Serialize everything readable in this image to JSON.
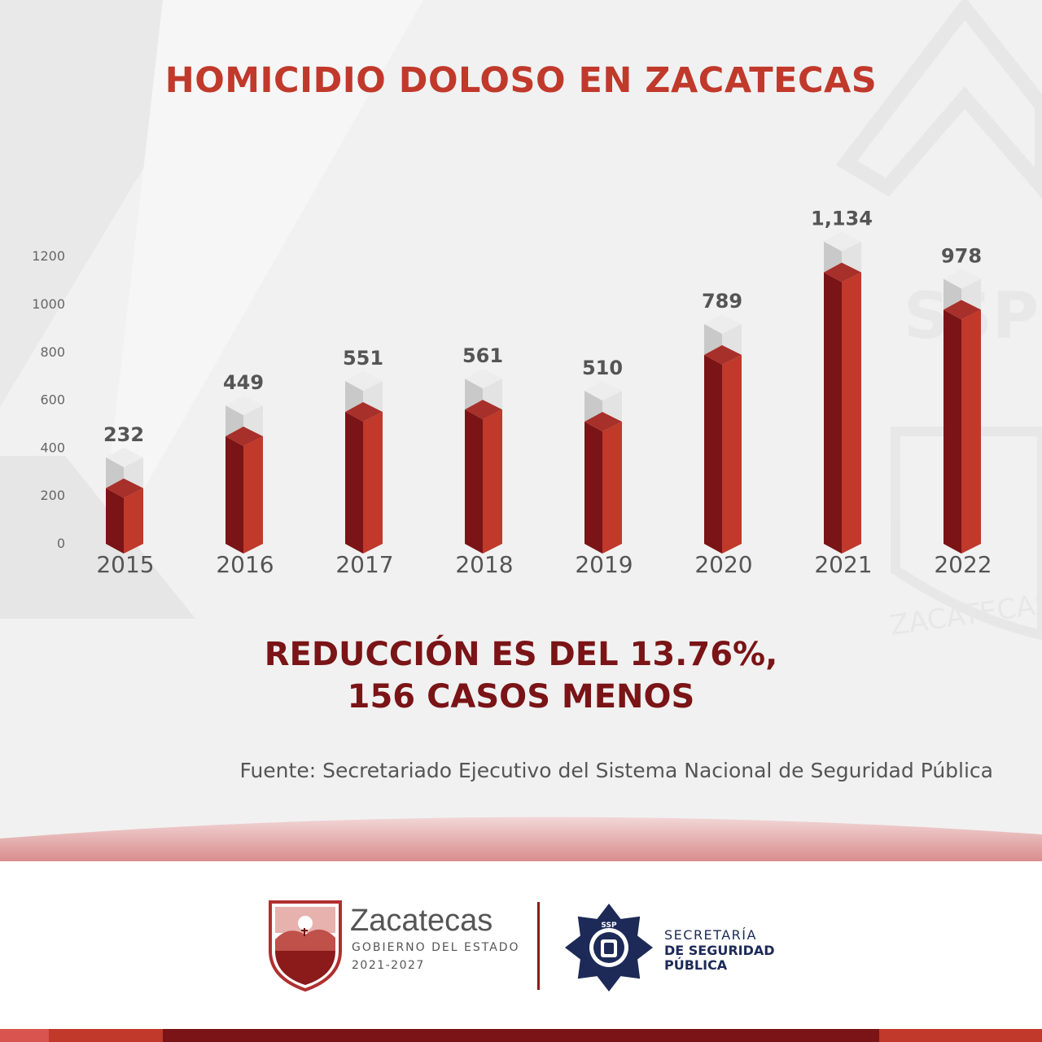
{
  "title": "HOMICIDIO DOLOSO EN ZACATECAS",
  "headline": {
    "line1": "REDUCCIÓN ES DEL 13.76%,",
    "line2": "156 CASOS MENOS"
  },
  "source": "Fuente: Secretariado Ejecutivo del Sistema Nacional de Seguridad Pública",
  "chart_data": {
    "type": "bar",
    "title": "HOMICIDIO DOLOSO EN ZACATECAS",
    "categories": [
      "2015",
      "2016",
      "2017",
      "2018",
      "2019",
      "2020",
      "2021",
      "2022"
    ],
    "values": [
      232,
      449,
      551,
      561,
      510,
      789,
      1134,
      978
    ],
    "value_labels": [
      "232",
      "449",
      "551",
      "561",
      "510",
      "789",
      "1,134",
      "978"
    ],
    "y_ticks": [
      0,
      200,
      400,
      600,
      800,
      1000,
      1200
    ],
    "ylim": [
      0,
      1200
    ],
    "grid": false,
    "xlabel": "",
    "ylabel": ""
  },
  "colors": {
    "title": "#c0392b",
    "headline": "#7a1416",
    "bar_front": "#c0392b",
    "bar_side": "#7a1416",
    "bar_top": "#a8302a",
    "ghost_front": "#e3e3e3",
    "ghost_side": "#c9c9c9",
    "ghost_top": "#ededed",
    "brand_navy": "#1d2a57"
  },
  "footer": {
    "zacatecas": {
      "name": "Zacatecas",
      "subtitle": "GOBIERNO DEL ESTADO",
      "years": "2021-2027"
    },
    "ssp": {
      "line1": "SECRETARÍA",
      "line2": "DE SEGURIDAD",
      "line3": "PÚBLICA",
      "badge_text": "SSP"
    }
  },
  "watermark": {
    "text1": "SSP",
    "text2": "ZACATECAS"
  }
}
